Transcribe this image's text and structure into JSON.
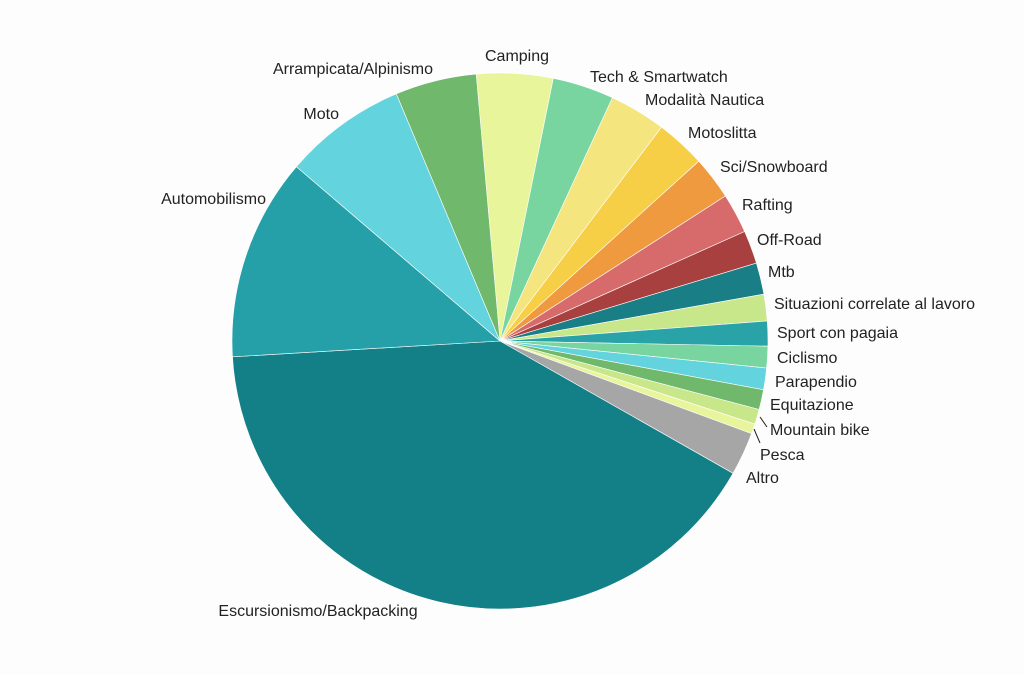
{
  "chart_data": {
    "type": "pie",
    "categories": [
      "Camping",
      "Tech & Smartwatch",
      "Modalità Nautica",
      "Motoslitta",
      "Sci/Snowboard",
      "Rafting",
      "Off-Road",
      "Mtb",
      "Situazioni correlate al lavoro",
      "Sport con pagaia",
      "Ciclismo",
      "Parapendio",
      "Equitazione",
      "Mountain bike",
      "Pesca",
      "Altro",
      "Escursionismo/Backpacking",
      "Automobilismo",
      "Moto",
      "Arrampicata/Alpinismo"
    ],
    "values": [
      4.6,
      3.7,
      3.4,
      3.0,
      2.6,
      2.4,
      2.0,
      1.9,
      1.6,
      1.5,
      1.3,
      1.3,
      1.2,
      0.9,
      0.6,
      2.6,
      40.8,
      12.2,
      7.4,
      4.9
    ],
    "colors": [
      "#e8f59a",
      "#79d5a0",
      "#f5e57f",
      "#f7cf46",
      "#ef9a3e",
      "#d76b6b",
      "#a94040",
      "#1a7e86",
      "#c8e68a",
      "#2aa3a8",
      "#79d5a0",
      "#63d3dd",
      "#6fb86c",
      "#c8e68a",
      "#e8f59a",
      "#a6a6a6",
      "#137f86",
      "#26a0a8",
      "#63d3dd",
      "#6fb86c"
    ]
  }
}
